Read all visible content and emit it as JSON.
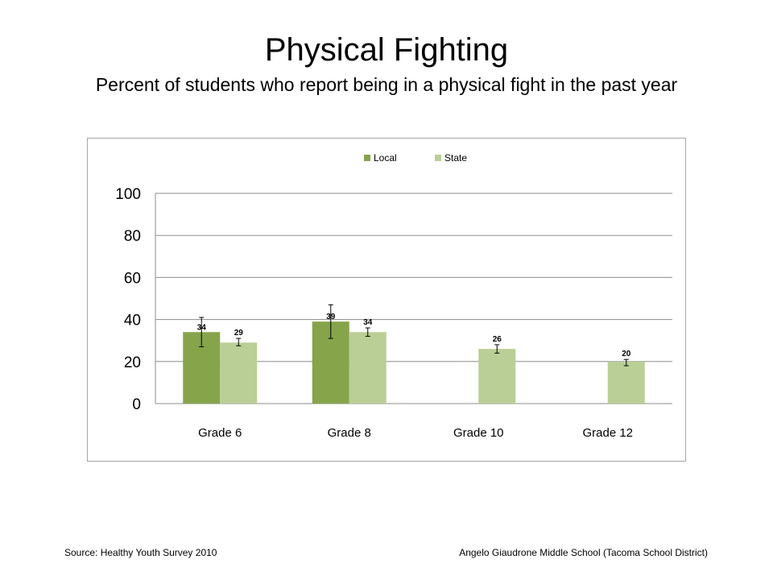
{
  "slide": {
    "title": "Physical Fighting",
    "subtitle": "Percent of students who report being in a physical fight in the past year",
    "source": "Source: Healthy Youth Survey 2010",
    "school": "Angelo Giaudrone Middle School (Tacoma School District)"
  },
  "chart_data": {
    "type": "bar",
    "categories": [
      "Grade 6",
      "Grade 8",
      "Grade 10",
      "Grade 12"
    ],
    "series": [
      {
        "name": "Local",
        "color": "#86a44a",
        "values": [
          34,
          39,
          null,
          null
        ],
        "labels": [
          "34",
          "39",
          "",
          ""
        ],
        "error": [
          [
            27,
            41
          ],
          [
            31,
            47
          ],
          null,
          null
        ]
      },
      {
        "name": "State",
        "color": "#b9cf95",
        "values": [
          29,
          34,
          26,
          20
        ],
        "labels": [
          "29",
          "34",
          "26",
          "20"
        ],
        "error": [
          [
            27.5,
            31
          ],
          [
            32,
            36
          ],
          [
            24,
            28
          ],
          [
            18,
            21
          ]
        ]
      }
    ],
    "ylim": [
      0,
      100
    ],
    "yticks": [
      0,
      20,
      40,
      60,
      80,
      100
    ],
    "grid": true,
    "legend": "top-center",
    "title": "",
    "xlabel": "",
    "ylabel": ""
  }
}
